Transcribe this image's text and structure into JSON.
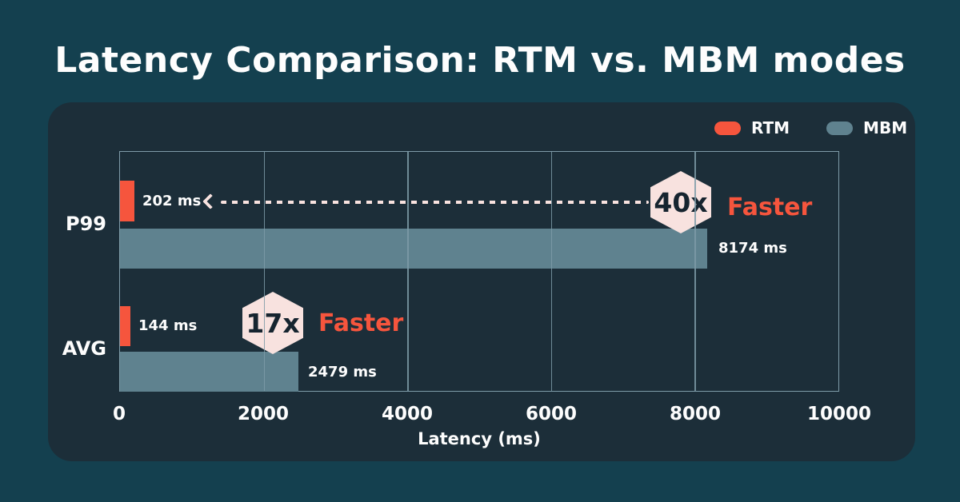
{
  "colors": {
    "bg": "#14404F",
    "panel": "#1C2E39",
    "grid": "#7E9BA8",
    "rtm": "#F6553D",
    "mbm": "#5F828F",
    "pink": "#F8E2DF",
    "dark": "#16242F",
    "text": "#FDFDFD"
  },
  "legend": {
    "items": [
      {
        "label": "RTM",
        "color": "#F6553D"
      },
      {
        "label": "MBM",
        "color": "#5F828F"
      }
    ]
  },
  "chart_data": {
    "type": "bar",
    "orientation": "horizontal",
    "title": "Latency Comparison: RTM vs. MBM modes",
    "xlabel": "Latency (ms)",
    "xlim": [
      0,
      10000
    ],
    "x_ticks": [
      "0",
      "2000",
      "4000",
      "6000",
      "8000",
      "10000"
    ],
    "grid": "vertical-only",
    "legend_position": "top-right",
    "categories": [
      "P99",
      "AVG"
    ],
    "series_names": [
      "RTM",
      "MBM"
    ],
    "rows": [
      {
        "category": "P99",
        "rtm_value": 202,
        "rtm_label": "202 ms",
        "mbm_value": 8174,
        "mbm_label": "8174 ms",
        "badge": "40x",
        "badge_suffix": "Faster"
      },
      {
        "category": "AVG",
        "rtm_value": 144,
        "rtm_label": "144 ms",
        "mbm_value": 2479,
        "mbm_label": "2479 ms",
        "badge": "17x",
        "badge_suffix": "Faster"
      }
    ]
  }
}
